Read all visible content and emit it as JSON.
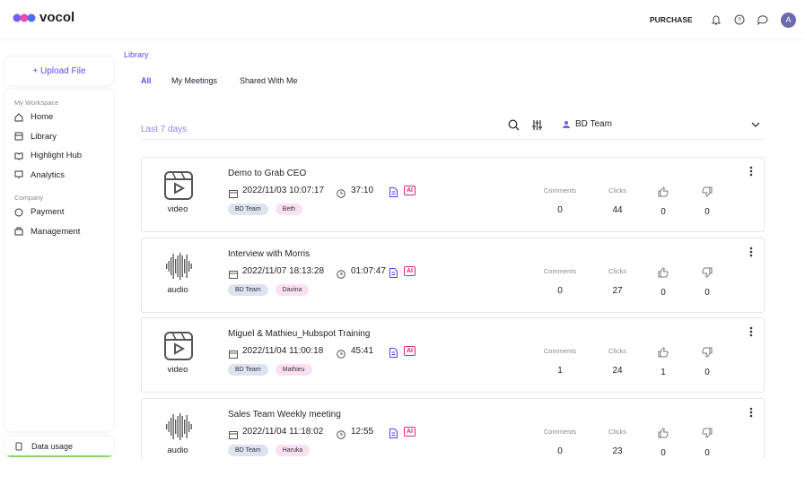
{
  "header": {
    "logo": "vocol",
    "purchase": "PURCHASE",
    "avatar": "A"
  },
  "sidebar": {
    "upload": "+ Upload File",
    "sections": [
      {
        "title": "My Workspace",
        "items": [
          "Home",
          "Library",
          "Highlight Hub",
          "Analytics"
        ]
      },
      {
        "title": "Company",
        "items": [
          "Payment",
          "Management"
        ]
      }
    ],
    "data_usage": "Data usage"
  },
  "breadcrumb": "Library",
  "tabs": [
    "All",
    "My Meetings",
    "Shared With Me"
  ],
  "filter": {
    "period": "Last 7 days",
    "team": "BD Team"
  },
  "labels": {
    "comments": "Comments",
    "clicks": "Clicks",
    "ai": "AI"
  },
  "meetings": [
    {
      "type": "video",
      "title": "Demo to Grab CEO",
      "date": "2022/11/03 10:07:17",
      "duration": "37:10",
      "tags": [
        "BD Team",
        "Beth"
      ],
      "comments": 0,
      "clicks": 44,
      "likes": 0,
      "dislikes": 0
    },
    {
      "type": "audio",
      "title": "Interview with Morris",
      "date": "2022/11/07 18:13:28",
      "duration": "01:07:47",
      "tags": [
        "BD Team",
        "Davina"
      ],
      "comments": 0,
      "clicks": 27,
      "likes": 0,
      "dislikes": 0
    },
    {
      "type": "video",
      "title": "Miguel & Mathieu_Hubspot Training",
      "date": "2022/11/04 11:00:18",
      "duration": "45:41",
      "tags": [
        "BD Team",
        "Mathieu"
      ],
      "comments": 1,
      "clicks": 24,
      "likes": 1,
      "dislikes": 0
    },
    {
      "type": "audio",
      "title": "Sales Team Weekly meeting",
      "date": "2022/11/04 11:18:02",
      "duration": "12:55",
      "tags": [
        "BD Team",
        "Haruka"
      ],
      "comments": 0,
      "clicks": 23,
      "likes": 0,
      "dislikes": 0
    }
  ]
}
